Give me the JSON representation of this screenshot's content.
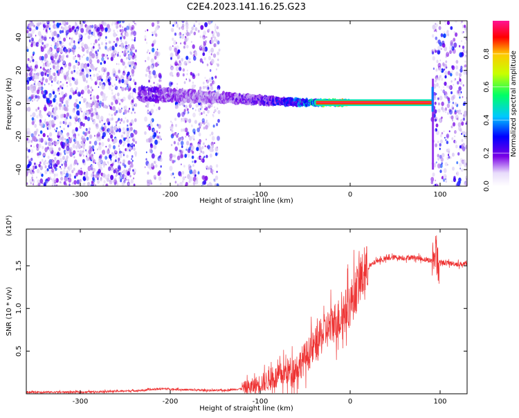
{
  "page_title": "C2E4.2023.141.16.25.G23",
  "chart_data": [
    {
      "type": "heatmap",
      "title": "C2E4.2023.141.16.25.G23",
      "xlabel": "Height of straight line (km)",
      "ylabel": "Frequency (Hz)",
      "xlim": [
        -360,
        130
      ],
      "ylim": [
        -50,
        50
      ],
      "xticks": [
        -300,
        -200,
        -100,
        0,
        100
      ],
      "yticks": [
        -40,
        -20,
        0,
        20,
        40
      ],
      "colorbar": {
        "label": "Normalized spectral amplitude",
        "range": [
          0,
          1
        ],
        "ticks": [
          "0.0",
          "0.2",
          "0.4",
          "0.6",
          "0.8"
        ],
        "colors": [
          "#ffffff",
          "#c9b3ef",
          "#7a00e6",
          "#0000ff",
          "#00c8ff",
          "#00ff66",
          "#c8ff00",
          "#ffc800",
          "#ff0000",
          "#ff1493"
        ]
      },
      "features": {
        "noise_bands_km": [
          [
            -360,
            -238
          ],
          [
            -228,
            -210
          ],
          [
            -200,
            -145
          ],
          [
            91,
            130
          ]
        ],
        "blank_gaps_km": [
          [
            -238,
            -228
          ],
          [
            -145,
            -90
          ]
        ],
        "ridge": [
          {
            "x": -235,
            "y": 6,
            "amp": 0.3
          },
          {
            "x": -200,
            "y": 5,
            "amp": 0.25
          },
          {
            "x": -160,
            "y": 4,
            "amp": 0.2
          },
          {
            "x": -130,
            "y": 3,
            "amp": 0.25
          },
          {
            "x": -100,
            "y": 2,
            "amp": 0.3
          },
          {
            "x": -70,
            "y": 1,
            "amp": 0.4
          },
          {
            "x": -40,
            "y": 0.5,
            "amp": 0.6
          },
          {
            "x": -20,
            "y": 0.5,
            "amp": 0.8
          },
          {
            "x": 0,
            "y": 0.5,
            "amp": 1.0
          },
          {
            "x": 90,
            "y": 0.5,
            "amp": 1.0
          }
        ],
        "vertical_spike_km": 92
      }
    },
    {
      "type": "line",
      "xlabel": "Height of straight line (km)",
      "ylabel": "SNR (10 * v/v)",
      "y_multiplier": "(x10⁴)",
      "xlim": [
        -360,
        130
      ],
      "ylim": [
        0,
        1.93
      ],
      "xticks": [
        -300,
        -200,
        -100,
        0,
        100
      ],
      "yticks": [
        "0.5",
        "1.0",
        "1.5"
      ],
      "color": "#ee3333",
      "x": [
        -360,
        -300,
        -260,
        -230,
        -210,
        -190,
        -160,
        -140,
        -120,
        -110,
        -100,
        -90,
        -80,
        -70,
        -60,
        -50,
        -40,
        -30,
        -20,
        -10,
        0,
        10,
        20,
        30,
        40,
        50,
        60,
        70,
        80,
        90,
        95,
        100,
        110,
        120,
        130
      ],
      "y": [
        0.02,
        0.02,
        0.03,
        0.04,
        0.06,
        0.05,
        0.04,
        0.04,
        0.06,
        0.08,
        0.12,
        0.16,
        0.2,
        0.26,
        0.3,
        0.42,
        0.55,
        0.7,
        0.82,
        0.9,
        1.05,
        1.3,
        1.48,
        1.56,
        1.58,
        1.6,
        1.59,
        1.6,
        1.58,
        1.56,
        1.62,
        1.54,
        1.53,
        1.52,
        1.52
      ]
    }
  ]
}
